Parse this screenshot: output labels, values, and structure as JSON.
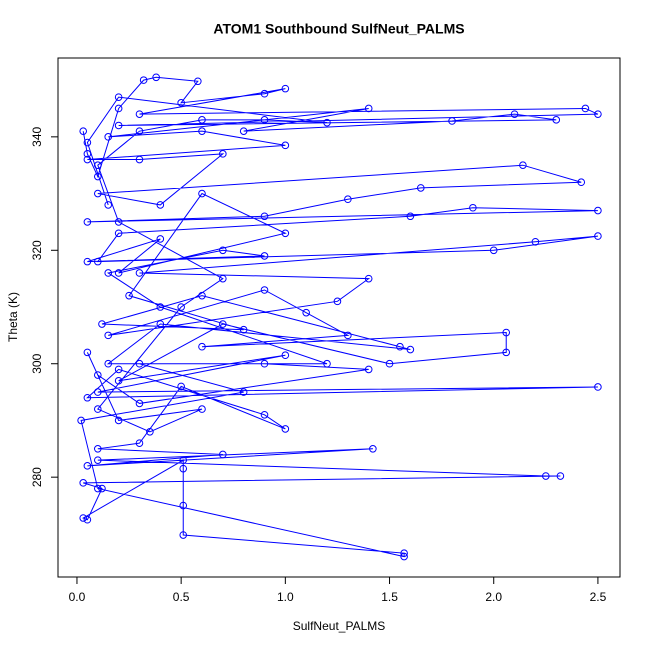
{
  "chart_data": {
    "type": "line",
    "marker": "open-circle",
    "color": "#0000ff",
    "title": "ATOM1 Southbound SulfNeut_PALMS",
    "x_label": "SulfNeut_PALMS",
    "y_label": "Theta (K)",
    "xlim": [
      -0.091,
      2.606
    ],
    "ylim": [
      262.4,
      353.9
    ],
    "xticks": [
      {
        "value": 0,
        "label": "0.0"
      },
      0.5,
      {
        "value": 1,
        "label": "1.0"
      },
      1.5,
      {
        "value": 2,
        "label": "2.0"
      },
      2.5
    ],
    "yticks": [
      280,
      300,
      320,
      340
    ],
    "grid": false,
    "x": [
      0.03,
      0.05,
      0.1,
      0.2,
      0.32,
      0.38,
      0.58,
      0.5,
      0.9,
      1.0,
      0.3,
      2.44,
      2.5,
      0.2,
      2.3,
      2.1,
      1.8,
      0.8,
      1.4,
      0.15,
      0.6,
      1.0,
      0.05,
      0.3,
      0.7,
      0.4,
      0.1,
      2.14,
      2.42,
      1.65,
      1.3,
      0.9,
      0.05,
      2.5,
      1.9,
      1.6,
      0.2,
      0.1,
      2.0,
      2.5,
      2.2,
      0.3,
      1.4,
      1.25,
      0.15,
      0.9,
      1.1,
      1.3,
      0.6,
      2.06,
      2.06,
      1.5,
      0.7,
      0.2,
      1.0,
      0.1,
      2.5,
      0.05,
      0.2,
      0.9,
      1.0,
      0.5,
      0.3,
      0.1,
      0.7,
      0.05,
      1.42,
      0.1,
      2.25,
      2.32,
      0.03,
      0.12,
      0.05,
      0.03,
      0.51,
      0.51,
      0.51,
      0.51,
      1.57,
      1.57,
      0.1,
      0.02,
      0.8,
      0.3,
      1.2,
      0.4,
      0.15,
      0.7,
      0.9,
      0.05,
      0.4,
      0.2,
      1.0,
      0.6,
      0.25,
      0.8,
      0.12,
      0.6,
      1.55,
      1.6,
      0.4,
      0.15,
      0.9,
      1.4,
      0.3,
      0.1,
      0.05,
      0.2,
      0.6,
      0.35,
      0.1,
      0.5,
      0.7,
      0.2,
      0.1,
      0.3,
      0.6,
      0.9,
      1.2,
      0.2,
      0.05,
      0.15
    ],
    "values": [
      341,
      337,
      333,
      345,
      350,
      350.5,
      349.8,
      346,
      347.6,
      348.5,
      344,
      345,
      344,
      342,
      343,
      344,
      342.8,
      341,
      345,
      340,
      341,
      338.5,
      336,
      336,
      337,
      328,
      330,
      335,
      332,
      331,
      329,
      326,
      325,
      327,
      327.5,
      326,
      323,
      318,
      320,
      322.5,
      321.5,
      316,
      315,
      311,
      305,
      313,
      309,
      305,
      303,
      305.5,
      302,
      300,
      307,
      297,
      301.5,
      295,
      295.9,
      294,
      299,
      291,
      288.5,
      296,
      286,
      285,
      284,
      282,
      285,
      283,
      280.2,
      280.2,
      279,
      278,
      272.5,
      272.8,
      283,
      281.5,
      275,
      269.8,
      266.6,
      266,
      278,
      290,
      295,
      300,
      300,
      310,
      316,
      320,
      319,
      318,
      322,
      316,
      323,
      330,
      312,
      306,
      307,
      312,
      303,
      302.5,
      307,
      300,
      300,
      299,
      293,
      298,
      302,
      290,
      292,
      288,
      292,
      310,
      315,
      325,
      335,
      341,
      343,
      343,
      342.5,
      347,
      339,
      328
    ]
  }
}
